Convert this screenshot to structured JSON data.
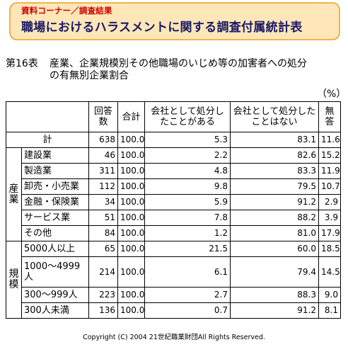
{
  "banner": {
    "subtitle": "資料コーナー／調査結果",
    "title": "職場におけるハラスメントに関する調査付属統計表"
  },
  "caption": {
    "number": "第16表",
    "line1": "産業、企業規模別その他職場のいじめ等の加害者への処分",
    "line2": "の有無別企業割合"
  },
  "unit": "（%）",
  "table": {
    "headers": {
      "count": "回答数",
      "total": "合計",
      "punished": "会社として処分したことがある",
      "not_punished": "会社として処分したことはない",
      "no_answer": "無答"
    },
    "total_row": {
      "label": "計",
      "count": "638",
      "total": "100.0",
      "punished": "5.3",
      "not_punished": "83.1",
      "no_answer": "11.6"
    },
    "groups": [
      {
        "label": "産業",
        "rows": [
          {
            "label": "建設業",
            "count": "46",
            "total": "100.0",
            "punished": "2.2",
            "not_punished": "82.6",
            "no_answer": "15.2"
          },
          {
            "label": "製造業",
            "count": "311",
            "total": "100.0",
            "punished": "4.8",
            "not_punished": "83.3",
            "no_answer": "11.9"
          },
          {
            "label": "卸売・小売業",
            "count": "112",
            "total": "100.0",
            "punished": "9.8",
            "not_punished": "79.5",
            "no_answer": "10.7"
          },
          {
            "label": "金融・保険業",
            "count": "34",
            "total": "100.0",
            "punished": "5.9",
            "not_punished": "91.2",
            "no_answer": "2.9"
          },
          {
            "label": "サービス業",
            "count": "51",
            "total": "100.0",
            "punished": "7.8",
            "not_punished": "88.2",
            "no_answer": "3.9"
          },
          {
            "label": "その他",
            "count": "84",
            "total": "100.0",
            "punished": "1.2",
            "not_punished": "81.0",
            "no_answer": "17.9"
          }
        ]
      },
      {
        "label": "規模",
        "rows": [
          {
            "label": "5000人以上",
            "count": "65",
            "total": "100.0",
            "punished": "21.5",
            "not_punished": "60.0",
            "no_answer": "18.5"
          },
          {
            "label": "1000～4999人",
            "count": "214",
            "total": "100.0",
            "punished": "6.1",
            "not_punished": "79.4",
            "no_answer": "14.5"
          },
          {
            "label": "300～999人",
            "count": "223",
            "total": "100.0",
            "punished": "2.7",
            "not_punished": "88.3",
            "no_answer": "9.0"
          },
          {
            "label": "300人未満",
            "count": "136",
            "total": "100.0",
            "punished": "0.7",
            "not_punished": "91.2",
            "no_answer": "8.1"
          }
        ]
      }
    ]
  },
  "footer": "Copyright (C) 2004  21世紀職業財団All Rights Reserved.",
  "colors": {
    "banner_fill": "#ffe6b8",
    "banner_border": "#e8a020",
    "title": "#1a1a66",
    "subtitle": "#cc0000"
  }
}
